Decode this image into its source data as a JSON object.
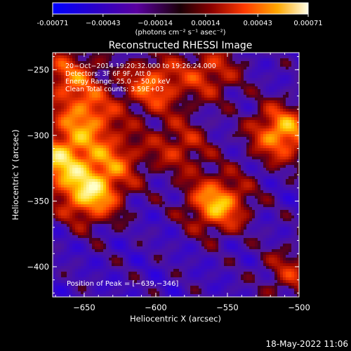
{
  "chart_data": {
    "type": "heatmap",
    "title": "Reconstructed RHESSI Image",
    "xlabel": "Heliocentric X (arcsec)",
    "ylabel": "Heliocentric Y (arcsec)",
    "xlim": [
      -672,
      -500
    ],
    "ylim": [
      -423,
      -237
    ],
    "x_ticks": [
      {
        "value": -650,
        "label": "−650"
      },
      {
        "value": -600,
        "label": "−600"
      },
      {
        "value": -550,
        "label": "−550"
      },
      {
        "value": -500,
        "label": "−500"
      }
    ],
    "y_ticks": [
      {
        "value": -250,
        "label": "−250"
      },
      {
        "value": -300,
        "label": "−300"
      },
      {
        "value": -350,
        "label": "−350"
      },
      {
        "value": -400,
        "label": "−400"
      }
    ],
    "colorbar": {
      "range": [
        -0.00071,
        0.00071
      ],
      "ticks": [
        {
          "value": -0.00071,
          "label": "-0.00071"
        },
        {
          "value": -0.00043,
          "label": "−0.00043"
        },
        {
          "value": -0.00014,
          "label": "−0.00014"
        },
        {
          "value": 0.00014,
          "label": "0.00014"
        },
        {
          "value": 0.00043,
          "label": "0.00043"
        },
        {
          "value": 0.00071,
          "label": "0.00071"
        }
      ],
      "unit": "(photons cm⁻² s⁻¹ asec⁻²)"
    },
    "annotations": [
      "20−Oct−2014 19:20:32.000 to 19:26:24.000",
      "Detectors: 3F 6F 9F, Att 0",
      "Energy Range: 25.0 − 50.0 keV",
      "Clean    Total counts: 3.59E+03"
    ],
    "peak_label": "Position of Peak = [−639,−346]",
    "peak": [
      -639,
      -346
    ],
    "hotspots": [
      {
        "x": -646,
        "y": -345,
        "v": 1.0
      },
      {
        "x": -668,
        "y": -318,
        "v": 0.9
      },
      {
        "x": -648,
        "y": -287,
        "v": 0.75
      },
      {
        "x": -602,
        "y": -262,
        "v": 0.72
      },
      {
        "x": -562,
        "y": -252,
        "v": 0.55
      },
      {
        "x": -512,
        "y": -298,
        "v": 0.95
      },
      {
        "x": -557,
        "y": -352,
        "v": 0.95
      },
      {
        "x": -628,
        "y": -318,
        "v": 0.55
      },
      {
        "x": -583,
        "y": -308,
        "v": 0.5
      },
      {
        "x": -505,
        "y": -405,
        "v": 0.45
      },
      {
        "x": -660,
        "y": -255,
        "v": 0.65
      }
    ]
  },
  "footer": {
    "date": "18-May-2022 11:06"
  }
}
